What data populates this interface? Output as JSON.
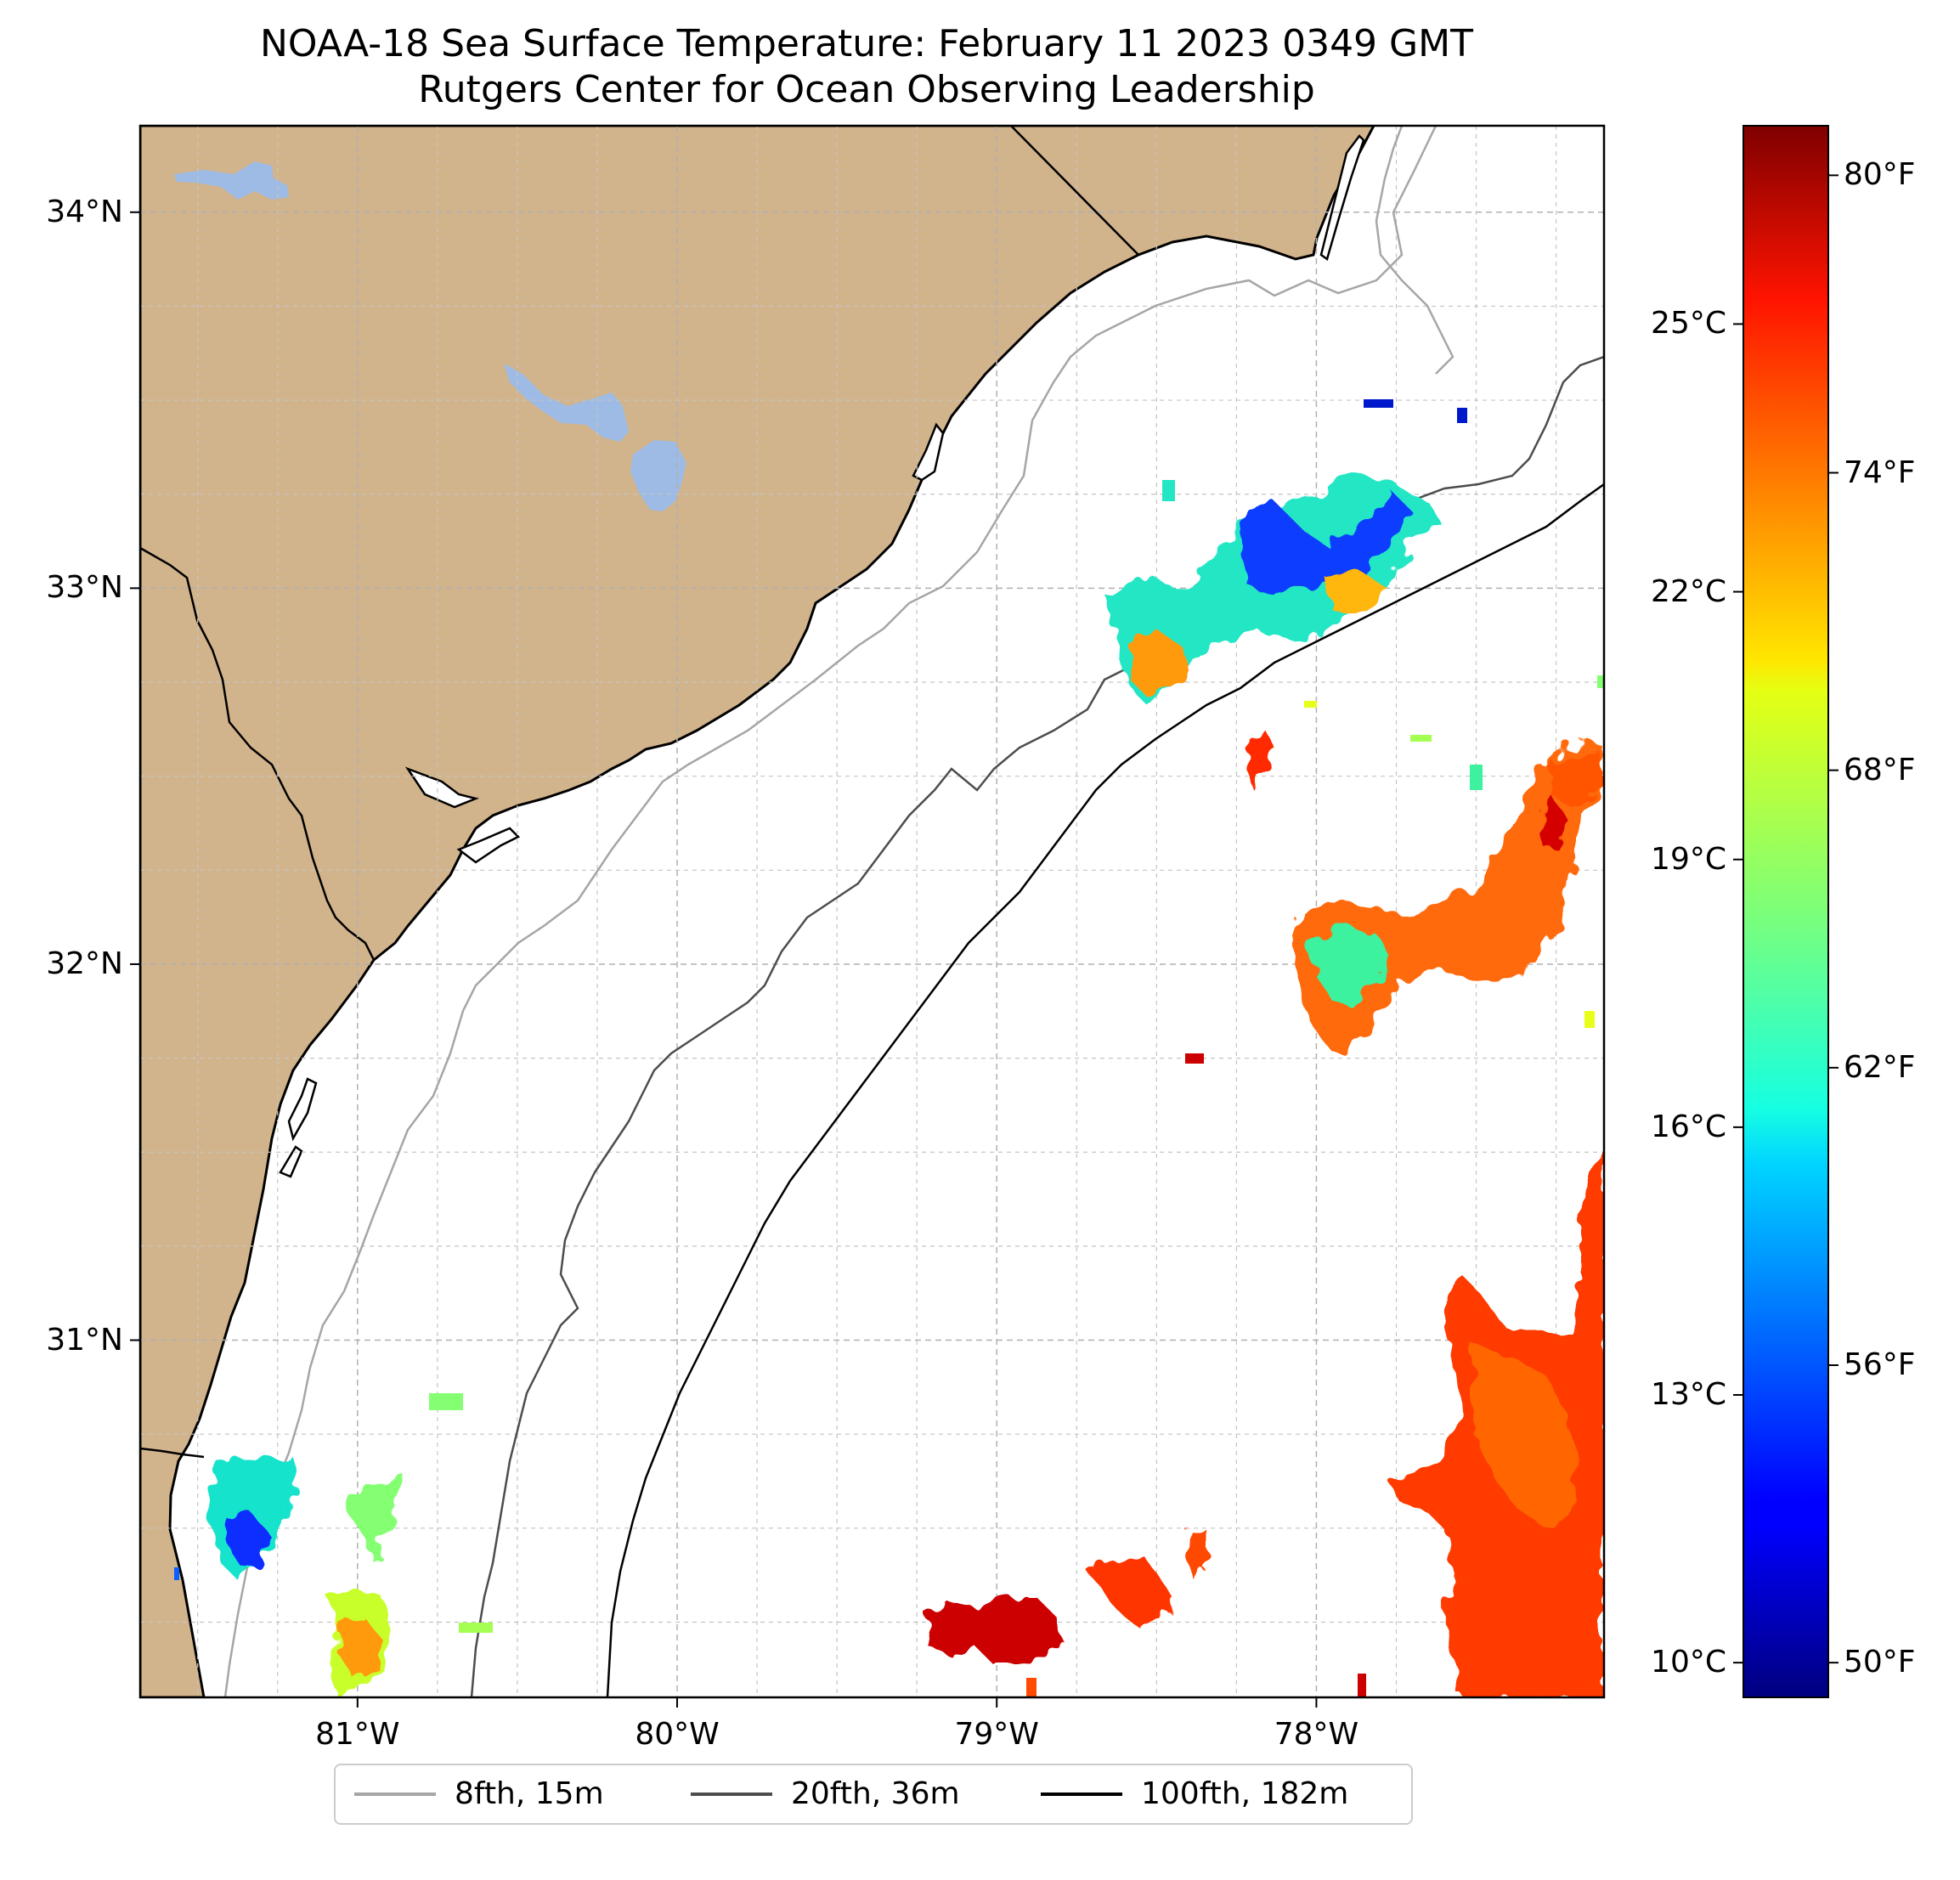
{
  "title": {
    "line1": "NOAA-18 Sea Surface Temperature: February 11 2023 0349 GMT",
    "line2": "Rutgers Center for Ocean Observing Leadership"
  },
  "map": {
    "lon_range": [
      -81.68,
      -77.1
    ],
    "lat_range": [
      30.05,
      34.23
    ],
    "land_color": "#d2b48c",
    "lake_color": "#9dbbe4",
    "lat_ticks": [
      {
        "value": 34,
        "label": "34°N"
      },
      {
        "value": 33,
        "label": "33°N"
      },
      {
        "value": 32,
        "label": "32°N"
      },
      {
        "value": 31,
        "label": "31°N"
      }
    ],
    "lon_ticks": [
      {
        "value": -81,
        "label": "81°W"
      },
      {
        "value": -80,
        "label": "80°W"
      },
      {
        "value": -79,
        "label": "79°W"
      },
      {
        "value": -78,
        "label": "78°W"
      }
    ]
  },
  "colorbar": {
    "colormap": "jet",
    "range_f": [
      49.3,
      81.0
    ],
    "celsius_ticks": [
      {
        "value": 10,
        "label": "10°C"
      },
      {
        "value": 13,
        "label": "13°C"
      },
      {
        "value": 16,
        "label": "16°C"
      },
      {
        "value": 19,
        "label": "19°C"
      },
      {
        "value": 22,
        "label": "22°C"
      },
      {
        "value": 25,
        "label": "25°C"
      }
    ],
    "fahrenheit_ticks": [
      {
        "value": 50,
        "label": "50°F"
      },
      {
        "value": 56,
        "label": "56°F"
      },
      {
        "value": 62,
        "label": "62°F"
      },
      {
        "value": 68,
        "label": "68°F"
      },
      {
        "value": 74,
        "label": "74°F"
      },
      {
        "value": 80,
        "label": "80°F"
      }
    ]
  },
  "legend": {
    "items": [
      {
        "label": "8fth, 15m",
        "color": "#a6a6a6"
      },
      {
        "label": "20fth, 36m",
        "color": "#4d4d4d"
      },
      {
        "label": "100fth, 182m",
        "color": "#000000"
      }
    ]
  }
}
